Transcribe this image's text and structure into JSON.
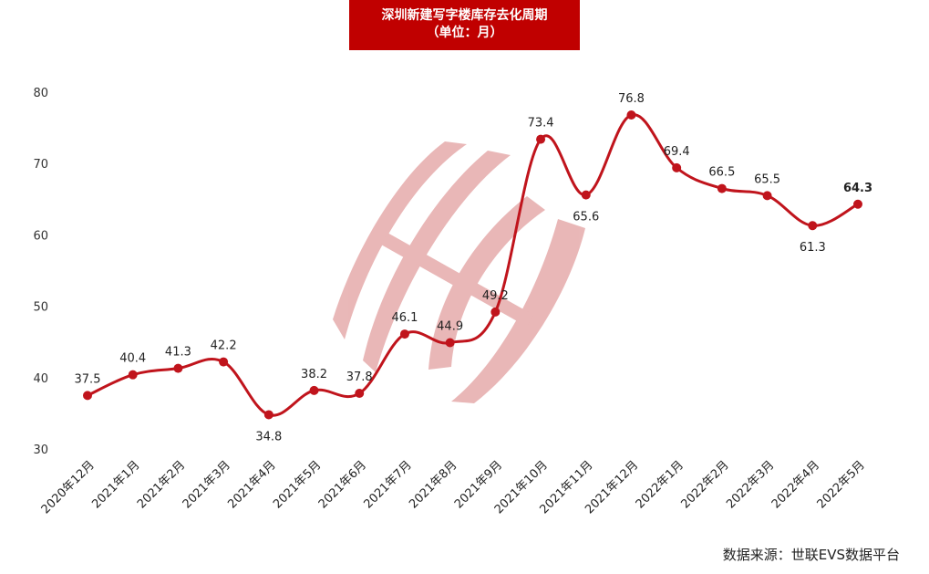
{
  "title": {
    "line1": "深圳新建写字楼库存去化周期",
    "line2": "（单位：月）"
  },
  "source": "数据来源：世联EVS数据平台",
  "colors": {
    "title_bg": "#c00000",
    "line": "#c0141c",
    "marker": "#c0141c",
    "watermark": "#e8b4b4"
  },
  "chart_data": {
    "type": "line",
    "title": "深圳新建写字楼库存去化周期（单位：月）",
    "xlabel": "",
    "ylabel": "",
    "ylim": [
      30,
      80
    ],
    "yticks": [
      30,
      40,
      50,
      60,
      70,
      80
    ],
    "grid": false,
    "legend": "none",
    "smooth": true,
    "categories": [
      "2020年12月",
      "2021年1月",
      "2021年2月",
      "2021年3月",
      "2021年4月",
      "2021年5月",
      "2021年6月",
      "2021年7月",
      "2021年8月",
      "2021年9月",
      "2021年10月",
      "2021年11月",
      "2021年12月",
      "2022年1月",
      "2022年2月",
      "2022年3月",
      "2022年4月",
      "2022年5月"
    ],
    "series": [
      {
        "name": "库存去化周期（月）",
        "values": [
          37.5,
          40.4,
          41.3,
          42.2,
          34.8,
          38.2,
          37.8,
          46.1,
          44.9,
          49.2,
          73.4,
          65.6,
          76.8,
          69.4,
          66.5,
          65.5,
          61.3,
          64.3
        ]
      }
    ],
    "data_labels": [
      "37.5",
      "40.4",
      "41.3",
      "42.2",
      "34.8",
      "38.2",
      "37.8",
      "46.1",
      "44.9",
      "49.2",
      "73.4",
      "65.6",
      "76.8",
      "69.4",
      "66.5",
      "65.5",
      "61.3",
      "64.3"
    ],
    "label_below": [
      false,
      false,
      false,
      false,
      true,
      false,
      false,
      false,
      false,
      false,
      false,
      true,
      false,
      false,
      false,
      false,
      true,
      false
    ],
    "highlight_last": true
  }
}
